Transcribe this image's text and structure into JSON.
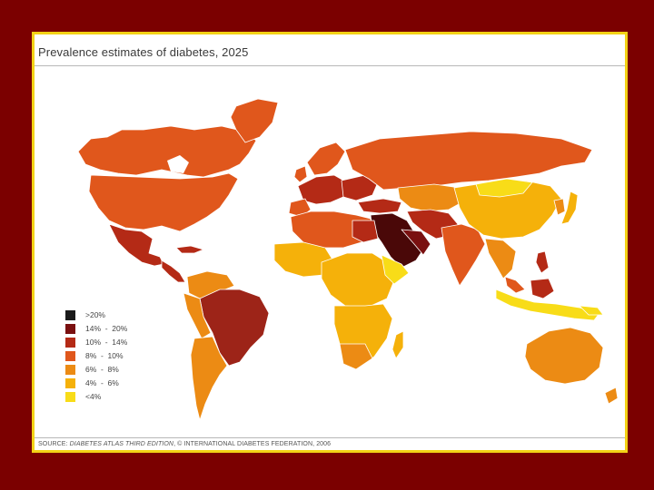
{
  "title": "Prevalence estimates of diabetes, 2025",
  "source": {
    "prefix": "SOURCE: ",
    "publication": "DIABETES ATLAS THIRD EDITION",
    "suffix": ", © INTERNATIONAL DIABETES FEDERATION, 2006"
  },
  "legend": [
    {
      "label": ">20%",
      "color": "#1a1a1a"
    },
    {
      "label": "14%  -  20%",
      "color": "#7a1010"
    },
    {
      "label": "10%  -  14%",
      "color": "#b42a16"
    },
    {
      "label": "8%  -  10%",
      "color": "#e0571c"
    },
    {
      "label": "6%  -  8%",
      "color": "#ec8b14"
    },
    {
      "label": "4%  -  6%",
      "color": "#f5b10a"
    },
    {
      "label": "<4%",
      "color": "#f8dc18"
    }
  ],
  "colors": {
    "background": "#7b0000",
    "frame_border": "#f3d216"
  }
}
